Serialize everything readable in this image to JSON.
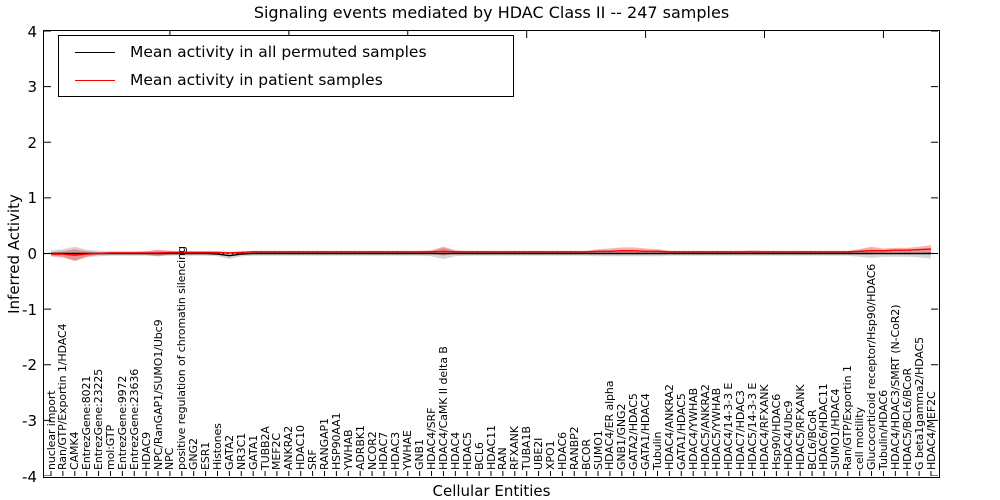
{
  "title": "Signaling events mediated by HDAC Class II -- 247 samples",
  "legend": {
    "items": [
      {
        "label": "Mean activity in all permuted samples",
        "color": "#000000"
      },
      {
        "label": "Mean activity in patient samples",
        "color": "#ff0000"
      }
    ]
  },
  "axes": {
    "y_label": "Inferred Activity",
    "x_label": "Cellular Entities",
    "y_ticks": [
      "4",
      "3",
      "2",
      "1",
      "0",
      "-1",
      "-2",
      "-3",
      "-4"
    ]
  },
  "colors": {
    "permuted_line": "#000000",
    "patient_line": "#ff0000",
    "permuted_band": "rgba(165,165,165,0.45)",
    "patient_band": "rgba(255,25,25,0.35)",
    "zero_line": "#000000"
  },
  "chart_data": {
    "type": "line",
    "title": "Signaling events mediated by HDAC Class II -- 247 samples",
    "xlabel": "Cellular Entities",
    "ylabel": "Inferred Activity",
    "ylim": [
      -4,
      4
    ],
    "grid": false,
    "legend_position": "upper left",
    "zero_reference_line": true,
    "categories": [
      "nuclear import",
      "Ran/GTP/Exportin 1/HDAC4",
      "CAMK4",
      "EntrezGene:8021",
      "EntrezGene:23225",
      "mol:GTP",
      "EntrezGene:9972",
      "EntrezGene:23636",
      "HDAC9",
      "NPC/RanGAP1/SUMO1/Ubc9",
      "NPC",
      "positive regulation of chromatin silencing",
      "GNG2",
      "ESR1",
      "Histones",
      "GATA2",
      "NR3C1",
      "GATA1",
      "TUBB2A",
      "MEF2C",
      "ANKRA2",
      "HDAC10",
      "SRF",
      "RANGAP1",
      "HSP90AA1",
      "YWHAB",
      "ADRBK1",
      "NCOR2",
      "HDAC7",
      "HDAC3",
      "YWHAE",
      "GNB1",
      "HDAC4/SRF",
      "HDAC4/CaMK II delta B",
      "HDAC4",
      "HDAC5",
      "BCL6",
      "HDAC11",
      "RAN",
      "RFXANK",
      "TUBA1B",
      "UBE2I",
      "XPO1",
      "HDAC6",
      "RANBP2",
      "BCOR",
      "SUMO1",
      "HDAC4/ER alpha",
      "GNB1/GNG2",
      "GATA2/HDAC5",
      "GATA1/HDAC4",
      "Tubulin",
      "HDAC4/ANKRA2",
      "GATA1/HDAC5",
      "HDAC4/YWHAB",
      "HDAC5/ANKRA2",
      "HDAC5/YWHAB",
      "HDAC4/14-3-3 E",
      "HDAC7/HDAC3",
      "HDAC5/14-3-3 E",
      "HDAC4/RFXANK",
      "Hsp90/HDAC6",
      "HDAC4/Ubc9",
      "HDAC5/RFXANK",
      "BCL6/BCoR",
      "HDAC6/HDAC11",
      "SUMO1/HDAC4",
      "Ran/GTP/Exportin 1",
      "cell motility",
      "Glucocorticoid receptor/Hsp90/HDAC6",
      "Tubulin/HDAC6",
      "HDAC4/HDAC3/SMRT (N-CoR2)",
      "HDAC5/BCL6/BCoR",
      "G beta1gamma2/HDAC5",
      "HDAC4/MEF2C"
    ],
    "series": [
      {
        "name": "Mean activity in all permuted samples",
        "color": "#000000",
        "values": [
          0,
          0,
          0,
          0,
          0,
          0,
          0,
          0,
          0,
          0,
          0,
          0,
          0,
          0,
          -0.01,
          -0.04,
          -0.01,
          0,
          0,
          0,
          0,
          0,
          0,
          0,
          0,
          0,
          0,
          0,
          0,
          0,
          0,
          0,
          0,
          0,
          0,
          0,
          0,
          0,
          0,
          0,
          0,
          0,
          0,
          0,
          0,
          0,
          0,
          0,
          0,
          0,
          0,
          0,
          0,
          0,
          0,
          0,
          0,
          0,
          0,
          0,
          0,
          0,
          0,
          0,
          0,
          0,
          0,
          0,
          0,
          0,
          0,
          0,
          0,
          0,
          0
        ],
        "spread": [
          0.06,
          0.08,
          0.12,
          0.07,
          0.05,
          0.04,
          0.04,
          0.04,
          0.04,
          0.05,
          0.04,
          0.04,
          0.04,
          0.04,
          0.04,
          0.06,
          0.04,
          0.04,
          0.04,
          0.04,
          0.04,
          0.04,
          0.04,
          0.04,
          0.04,
          0.04,
          0.04,
          0.04,
          0.04,
          0.04,
          0.04,
          0.04,
          0.05,
          0.1,
          0.05,
          0.04,
          0.04,
          0.04,
          0.04,
          0.04,
          0.04,
          0.04,
          0.04,
          0.04,
          0.04,
          0.04,
          0.05,
          0.05,
          0.05,
          0.05,
          0.05,
          0.05,
          0.04,
          0.04,
          0.04,
          0.04,
          0.04,
          0.04,
          0.04,
          0.04,
          0.04,
          0.04,
          0.04,
          0.04,
          0.04,
          0.04,
          0.04,
          0.04,
          0.06,
          0.08,
          0.06,
          0.06,
          0.06,
          0.07,
          0.09
        ]
      },
      {
        "name": "Mean activity in patient samples",
        "color": "#ff0000",
        "values": [
          -0.01,
          -0.01,
          -0.03,
          -0.01,
          0,
          0.01,
          0.01,
          0.01,
          0.01,
          0.01,
          0.02,
          0.02,
          0.02,
          0.02,
          0.02,
          0.01,
          0.02,
          0.03,
          0.03,
          0.03,
          0.03,
          0.03,
          0.03,
          0.03,
          0.03,
          0.03,
          0.03,
          0.03,
          0.03,
          0.03,
          0.03,
          0.03,
          0.03,
          0.04,
          0.03,
          0.03,
          0.03,
          0.03,
          0.03,
          0.03,
          0.03,
          0.03,
          0.03,
          0.03,
          0.03,
          0.03,
          0.04,
          0.04,
          0.05,
          0.05,
          0.04,
          0.04,
          0.03,
          0.03,
          0.03,
          0.03,
          0.03,
          0.03,
          0.03,
          0.03,
          0.03,
          0.03,
          0.03,
          0.03,
          0.03,
          0.03,
          0.03,
          0.03,
          0.04,
          0.05,
          0.05,
          0.06,
          0.06,
          0.07,
          0.08
        ],
        "spread": [
          0.03,
          0.05,
          0.11,
          0.05,
          0.02,
          0.02,
          0.02,
          0.02,
          0.03,
          0.06,
          0.03,
          0.02,
          0.02,
          0.02,
          0.02,
          0.02,
          0.02,
          0.02,
          0.02,
          0.02,
          0.02,
          0.02,
          0.02,
          0.02,
          0.02,
          0.02,
          0.02,
          0.02,
          0.02,
          0.02,
          0.02,
          0.02,
          0.03,
          0.08,
          0.03,
          0.02,
          0.02,
          0.02,
          0.02,
          0.02,
          0.02,
          0.02,
          0.02,
          0.02,
          0.02,
          0.02,
          0.04,
          0.05,
          0.06,
          0.06,
          0.05,
          0.04,
          0.02,
          0.02,
          0.02,
          0.02,
          0.02,
          0.02,
          0.02,
          0.03,
          0.02,
          0.02,
          0.02,
          0.02,
          0.02,
          0.02,
          0.02,
          0.02,
          0.04,
          0.07,
          0.04,
          0.04,
          0.04,
          0.05,
          0.07
        ]
      }
    ]
  }
}
